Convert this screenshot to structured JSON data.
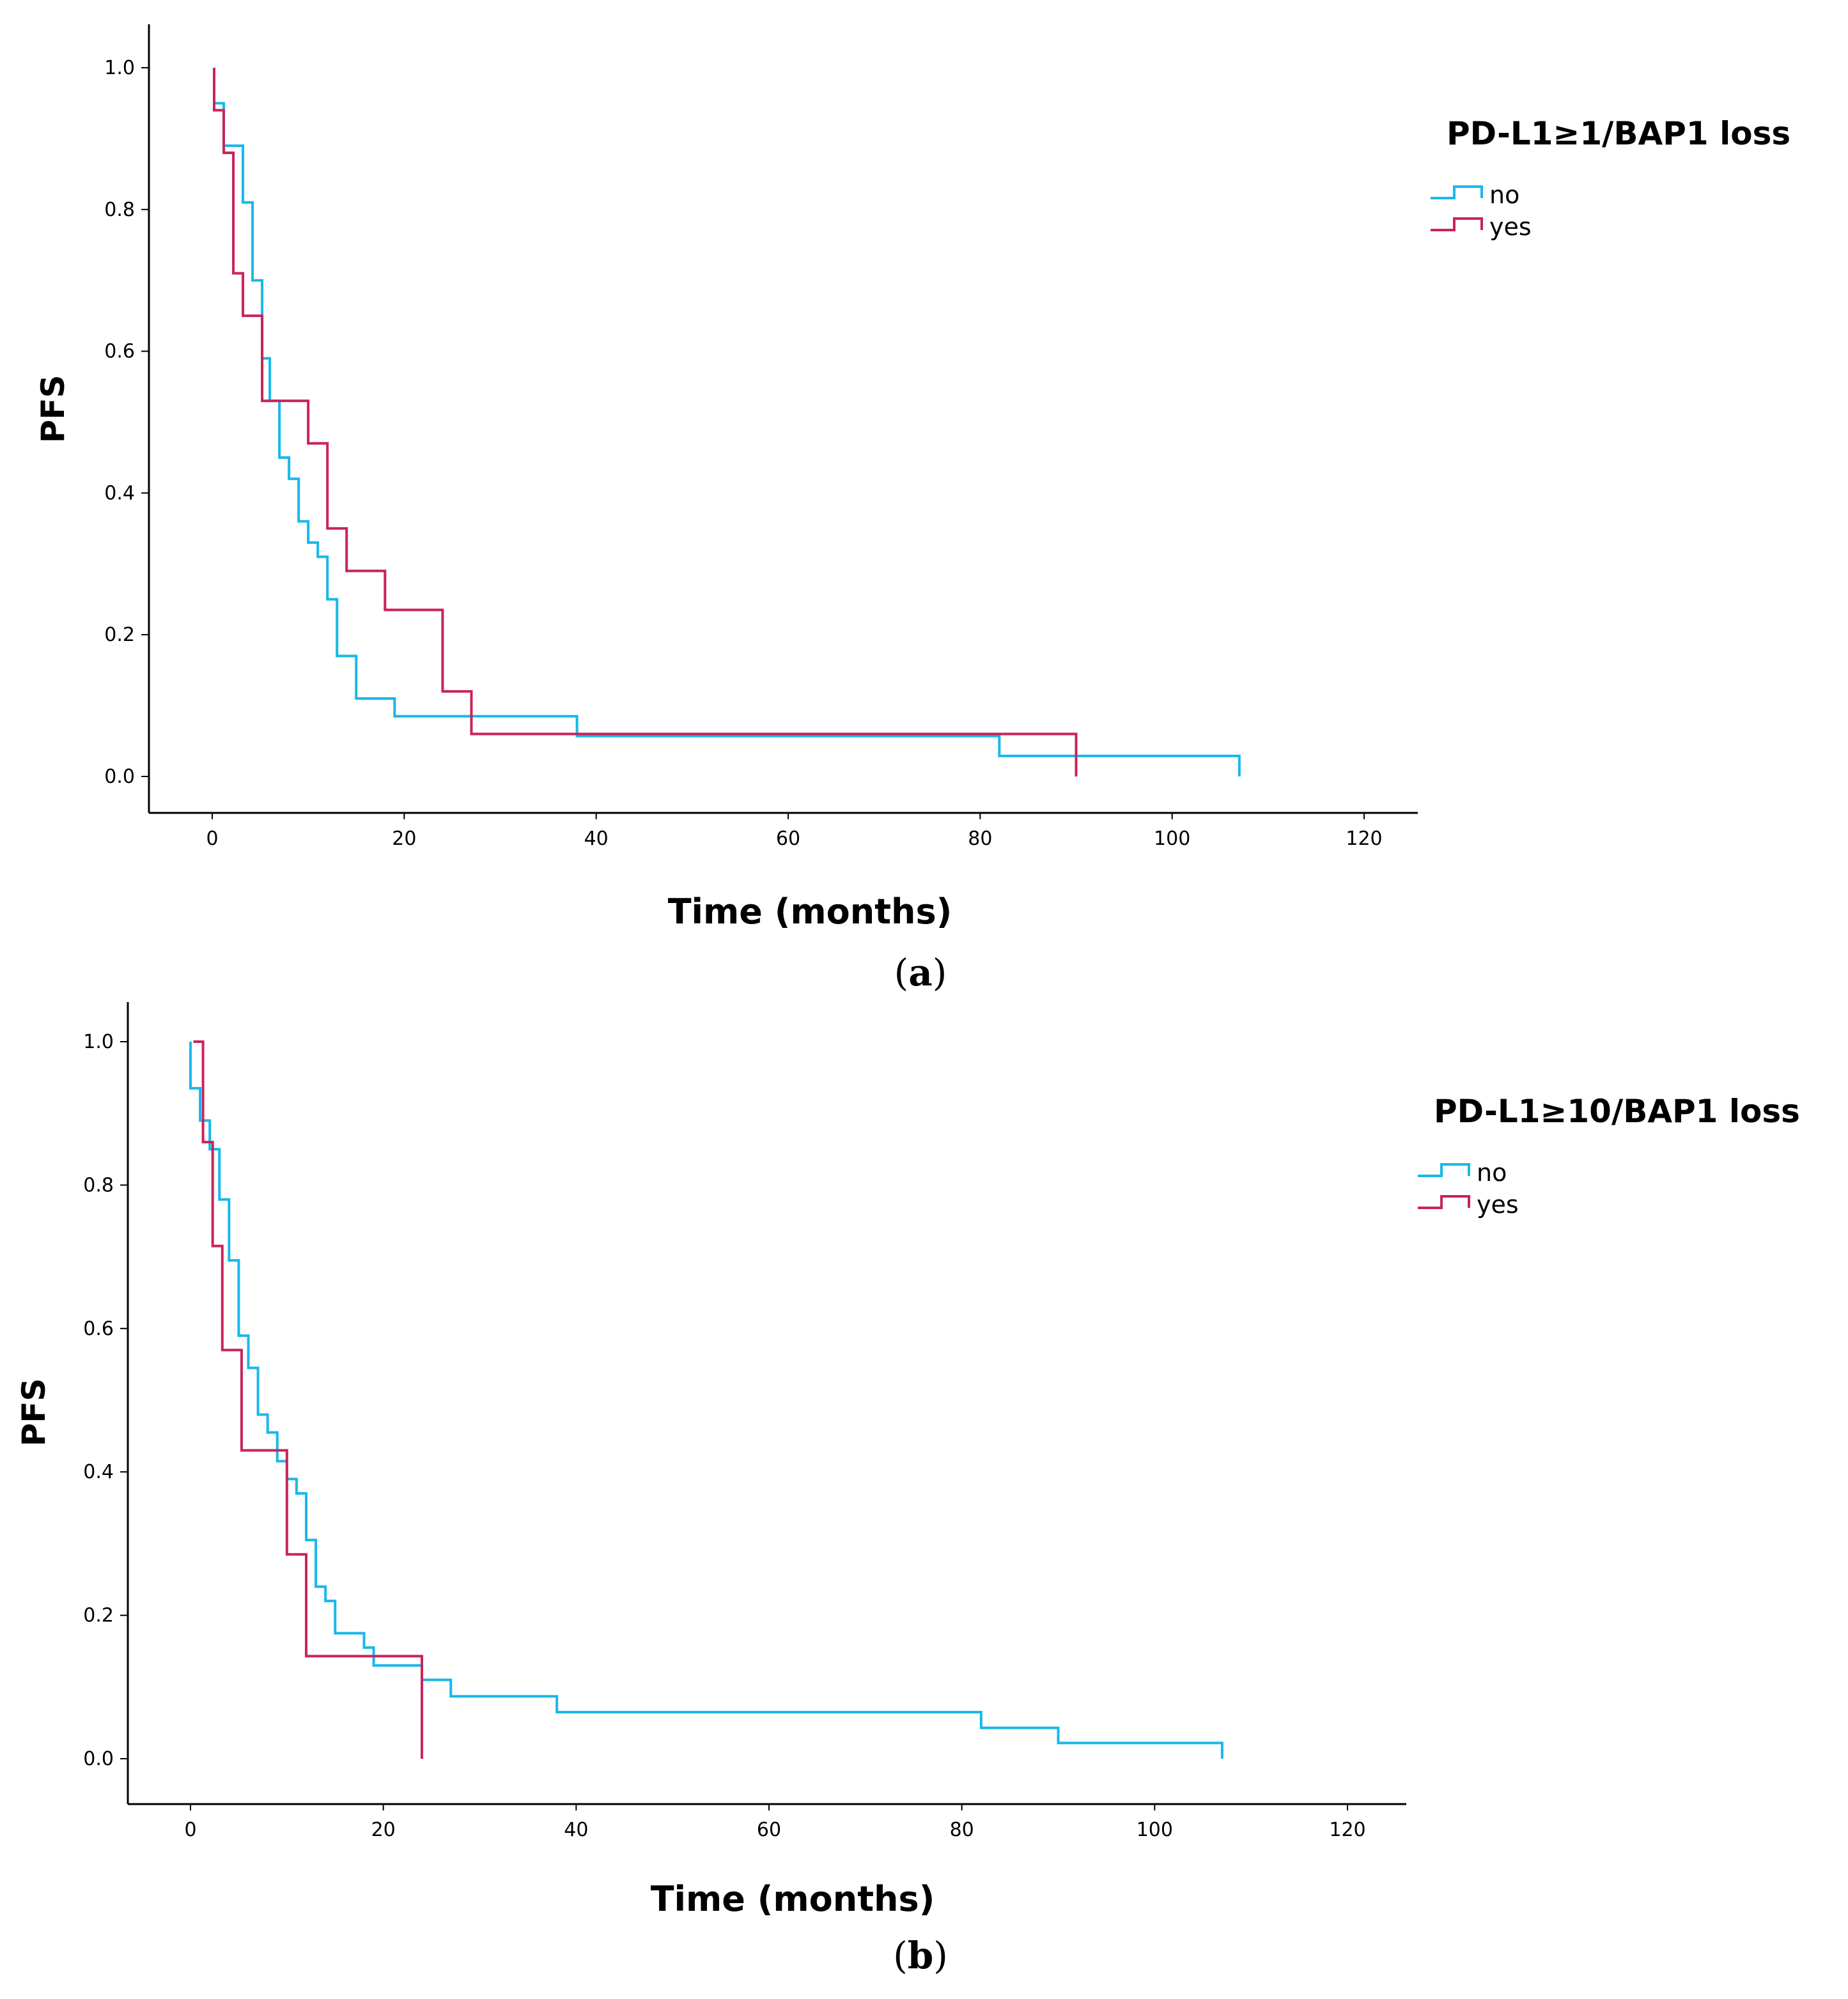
{
  "colors": {
    "no": "#18b8ea",
    "yes": "#c8245c"
  },
  "panels": [
    {
      "label": "a"
    },
    {
      "label": "b"
    }
  ],
  "chart_data": [
    {
      "type": "line",
      "subtype": "kaplan-meier-step",
      "panel": "a",
      "xlabel": "Time (months)",
      "ylabel": "PFS",
      "xlim": [
        0,
        120
      ],
      "ylim": [
        0,
        1.0
      ],
      "xticks": [
        "0",
        "20",
        "40",
        "60",
        "80",
        "100",
        "120"
      ],
      "yticks": [
        "0.0",
        "0.2",
        "0.4",
        "0.6",
        "0.8",
        "1.0"
      ],
      "grid": false,
      "legend": {
        "title": "PD-L1≥1/BAP1 loss",
        "position": "top-right",
        "entries": [
          "no",
          "yes"
        ]
      },
      "series": [
        {
          "name": "no",
          "colorKey": "no",
          "x": [
            0.2,
            0.2,
            1.2,
            2.2,
            3.2,
            4.2,
            5.2,
            6,
            7,
            8,
            9,
            10,
            11,
            12,
            13,
            15,
            19,
            38,
            82,
            107,
            107
          ],
          "y": [
            1.0,
            0.95,
            0.89,
            0.89,
            0.81,
            0.7,
            0.59,
            0.53,
            0.45,
            0.42,
            0.36,
            0.33,
            0.31,
            0.25,
            0.17,
            0.11,
            0.085,
            0.057,
            0.029,
            0.029,
            0.0
          ]
        },
        {
          "name": "yes",
          "colorKey": "yes",
          "x": [
            0.2,
            0.2,
            1.2,
            2.2,
            3.2,
            5.2,
            10,
            12,
            14,
            18,
            24,
            27,
            90,
            90
          ],
          "y": [
            1.0,
            0.94,
            0.88,
            0.71,
            0.65,
            0.53,
            0.47,
            0.35,
            0.29,
            0.235,
            0.12,
            0.06,
            0.06,
            0.0
          ]
        }
      ]
    },
    {
      "type": "line",
      "subtype": "kaplan-meier-step",
      "panel": "b",
      "xlabel": "Time (months)",
      "ylabel": "PFS",
      "xlim": [
        0,
        120
      ],
      "ylim": [
        0,
        1.0
      ],
      "xticks": [
        "0",
        "20",
        "40",
        "60",
        "80",
        "100",
        "120"
      ],
      "yticks": [
        "0.0",
        "0.2",
        "0.4",
        "0.6",
        "0.8",
        "1.0"
      ],
      "grid": false,
      "legend": {
        "title": "PD-L1≥10/BAP1 loss",
        "position": "top-right",
        "entries": [
          "no",
          "yes"
        ]
      },
      "series": [
        {
          "name": "no",
          "colorKey": "no",
          "x": [
            0,
            0,
            1,
            2,
            3,
            4,
            5,
            6,
            7,
            8,
            9,
            10,
            11,
            12,
            13,
            14,
            15,
            18,
            19,
            24,
            27,
            38,
            82,
            90,
            107,
            107
          ],
          "y": [
            1.0,
            0.935,
            0.89,
            0.85,
            0.78,
            0.695,
            0.59,
            0.545,
            0.48,
            0.455,
            0.415,
            0.39,
            0.37,
            0.305,
            0.24,
            0.22,
            0.175,
            0.155,
            0.13,
            0.11,
            0.087,
            0.065,
            0.043,
            0.022,
            0.022,
            0.0
          ]
        },
        {
          "name": "yes",
          "colorKey": "yes",
          "x": [
            0.3,
            1.3,
            2.3,
            3.3,
            5.3,
            10,
            12,
            24,
            24
          ],
          "y": [
            1.0,
            0.86,
            0.715,
            0.57,
            0.43,
            0.285,
            0.143,
            0.143,
            0.0
          ]
        }
      ]
    }
  ]
}
